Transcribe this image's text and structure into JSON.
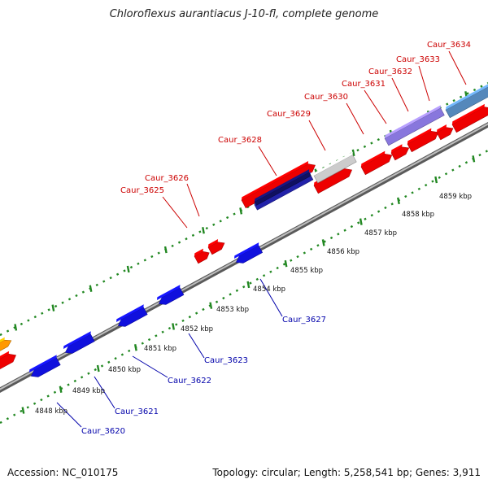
{
  "title": "Chloroflexus aurantiacus J-10-fl, complete genome",
  "footer": {
    "accession": "Accession: NC_010175",
    "topology": "Topology: circular; Length: 5,258,541 bp; Genes: 3,911"
  },
  "scale_labels": [
    "4848 kbp",
    "4849 kbp",
    "4850 kbp",
    "4851 kbp",
    "4852 kbp",
    "4853 kbp",
    "4854 kbp",
    "4855 kbp",
    "4856 kbp",
    "4857 kbp",
    "4858 kbp",
    "4859 kbp"
  ],
  "genes_top": [
    "Caur_3625",
    "Caur_3626",
    "Caur_3628",
    "Caur_3629",
    "Caur_3630",
    "Caur_3631",
    "Caur_3632",
    "Caur_3633",
    "Caur_3634"
  ],
  "genes_bottom": [
    "Caur_3620",
    "Caur_3621",
    "Caur_3622",
    "Caur_3623",
    "Caur_3627"
  ],
  "colors": {
    "forward_cds": "#ee0000",
    "reverse_cds": "#1010dd",
    "backbone": "#777777",
    "ticks": "#228822",
    "label_top": "#cc0000",
    "label_bottom": "#0000aa"
  }
}
